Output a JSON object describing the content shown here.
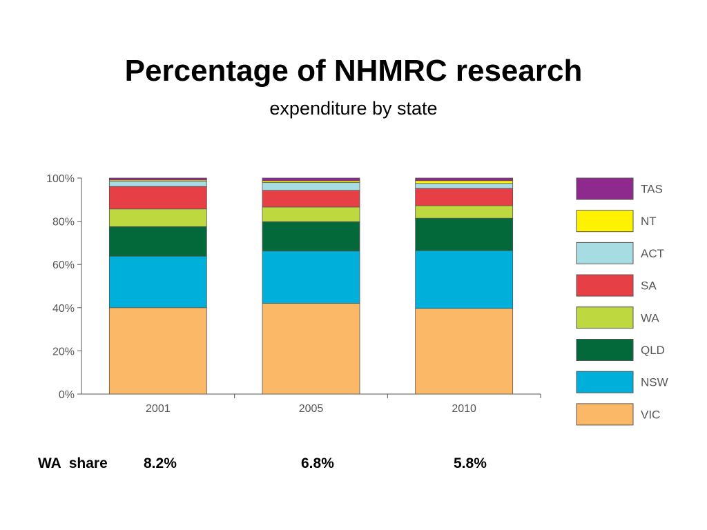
{
  "slide": {
    "title": "Percentage of NHMRC research",
    "subtitle": "expenditure by state"
  },
  "chart_data": {
    "type": "bar",
    "stacked": true,
    "categories": [
      "2001",
      "2005",
      "2010"
    ],
    "ylim": [
      0,
      100
    ],
    "yticks": [
      "0%",
      "20%",
      "40%",
      "60%",
      "80%",
      "100%"
    ],
    "legend_position": "right",
    "series": [
      {
        "name": "VIC",
        "color": "#FBB867",
        "values": [
          40.0,
          42.0,
          39.6
        ]
      },
      {
        "name": "NSW",
        "color": "#00B0DA",
        "values": [
          23.8,
          24.2,
          26.8
        ]
      },
      {
        "name": "QLD",
        "color": "#04693A",
        "values": [
          13.7,
          13.6,
          15.0
        ]
      },
      {
        "name": "WA",
        "color": "#BED83F",
        "values": [
          8.2,
          6.8,
          5.8
        ]
      },
      {
        "name": "SA",
        "color": "#E63F46",
        "values": [
          10.4,
          7.7,
          8.0
        ]
      },
      {
        "name": "ACT",
        "color": "#A8DCE3",
        "values": [
          2.4,
          3.6,
          2.3
        ]
      },
      {
        "name": "NT",
        "color": "#FFF200",
        "values": [
          0.6,
          0.8,
          1.3
        ]
      },
      {
        "name": "TAS",
        "color": "#8E2A8E",
        "values": [
          0.9,
          1.3,
          1.2
        ]
      }
    ]
  },
  "wa_share": {
    "label": "WA  share",
    "values": [
      "8.2%",
      "6.8%",
      "5.8%"
    ]
  }
}
